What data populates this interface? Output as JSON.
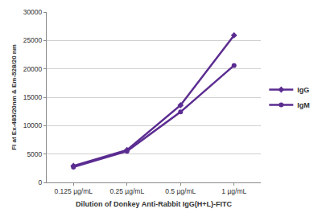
{
  "chart_data": {
    "type": "line",
    "categories": [
      "0.125 µg/mL",
      "0.25 µg/mL",
      "0.5 µg/mL",
      "1 µg/mL"
    ],
    "series": [
      {
        "name": "IgG",
        "color": "#5b2c91",
        "marker": "diamond",
        "values": [
          2900,
          5700,
          13600,
          25900
        ]
      },
      {
        "name": "IgM",
        "color": "#5b2c91",
        "marker": "circle",
        "values": [
          2700,
          5500,
          12400,
          20600
        ]
      }
    ],
    "x_label": "Dilution of Donkey Anti-Rabbit IgG(H+L)-FITC",
    "y_label": "FI at Ex-485/20nm & Em-528/20 nm",
    "ylim": [
      0,
      30000
    ],
    "yticks": [
      0,
      5000,
      10000,
      15000,
      20000,
      25000,
      30000
    ],
    "grid": true,
    "legend": "right"
  }
}
